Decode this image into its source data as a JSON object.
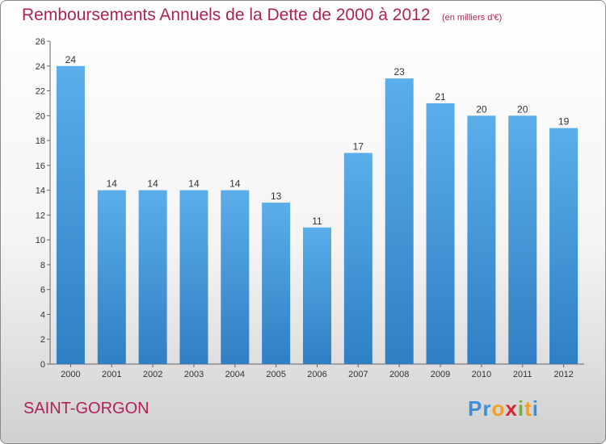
{
  "chart_data": {
    "type": "bar",
    "title": "Remboursements Annuels de la Dette de 2000 à 2012",
    "unit": "(en milliers d'€)",
    "categories": [
      "2000",
      "2001",
      "2002",
      "2003",
      "2004",
      "2005",
      "2006",
      "2007",
      "2008",
      "2009",
      "2010",
      "2011",
      "2012"
    ],
    "values": [
      24,
      14,
      14,
      14,
      14,
      13,
      11,
      17,
      23,
      21,
      20,
      20,
      19
    ],
    "ylim": [
      0,
      26
    ],
    "yticks": [
      0,
      2,
      4,
      6,
      8,
      10,
      12,
      14,
      16,
      18,
      20,
      22,
      24,
      26
    ],
    "grid": false,
    "bar_color": "#4a9de0"
  },
  "commune": "SAINT-GORGON",
  "brand": {
    "letters": [
      "P",
      "r",
      "o",
      "x",
      "i",
      "t",
      "i"
    ],
    "colors": [
      "#3a8fd8",
      "#3a8fd8",
      "#f2a023",
      "#d9262f",
      "#6fb23a",
      "#f2a023",
      "#3a8fd8"
    ]
  }
}
